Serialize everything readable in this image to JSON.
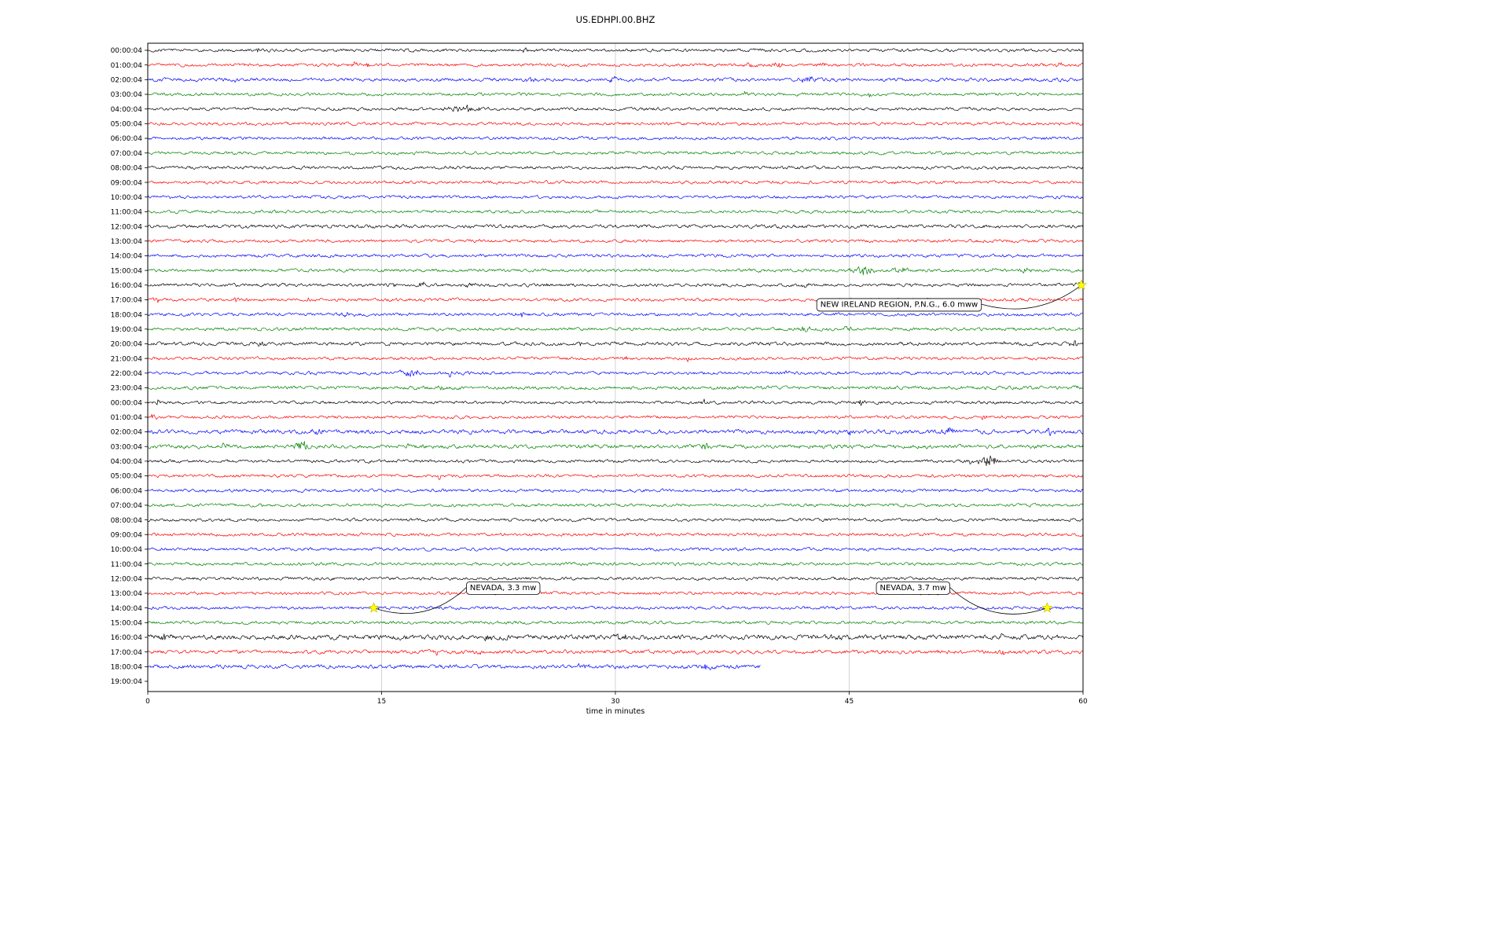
{
  "title": "US.EDHPI.00.BHZ",
  "chart_data": {
    "type": "line",
    "chart_kind": "seismic-helicorder-dayplot",
    "station_id": "US.EDHPI.00.BHZ",
    "xlabel": "time in minutes",
    "xlim": [
      0,
      60
    ],
    "xticks": [
      0,
      15,
      30,
      45,
      60
    ],
    "grid_x": [
      15,
      30,
      45
    ],
    "grid_on": true,
    "row_color_cycle": [
      "#000000",
      "#ff0000",
      "#0000ff",
      "#008000"
    ],
    "marker_color": "#ffff00",
    "rows": [
      {
        "label": "00:00:04",
        "color": "#000000",
        "bursts": [
          [
            7.1,
            4,
            0.08
          ],
          [
            24.2,
            3,
            0.1
          ]
        ]
      },
      {
        "label": "01:00:04",
        "color": "#ff0000",
        "bursts": [
          [
            13.2,
            3,
            0.15
          ],
          [
            14.1,
            2.5,
            0.1
          ],
          [
            38.8,
            4,
            0.25
          ],
          [
            40.4,
            3.5,
            0.3
          ],
          [
            43.2,
            3,
            0.2
          ],
          [
            58.5,
            3,
            0.15
          ]
        ]
      },
      {
        "label": "02:00:04",
        "color": "#0000ff",
        "noise": 1.1,
        "bursts": [
          [
            5.6,
            2,
            0.25
          ],
          [
            24.5,
            2,
            0.2
          ],
          [
            29.8,
            4,
            0.2
          ],
          [
            42.3,
            4,
            0.35
          ]
        ]
      },
      {
        "label": "03:00:04",
        "color": "#008000",
        "bursts": [
          [
            38.3,
            3,
            0.1
          ],
          [
            46.3,
            3,
            0.08
          ],
          [
            49.9,
            2.5,
            0.08
          ]
        ]
      },
      {
        "label": "04:00:04",
        "color": "#000000",
        "bursts": [
          [
            15.6,
            2.5,
            0.1
          ],
          [
            20.3,
            5,
            0.6
          ]
        ]
      },
      {
        "label": "05:00:04",
        "color": "#ff0000",
        "bursts": []
      },
      {
        "label": "06:00:04",
        "color": "#0000ff",
        "bursts": [
          [
            57.5,
            1.5,
            0.2
          ]
        ]
      },
      {
        "label": "07:00:04",
        "color": "#008000",
        "bursts": []
      },
      {
        "label": "08:00:04",
        "color": "#000000",
        "bursts": []
      },
      {
        "label": "09:00:04",
        "color": "#ff0000",
        "bursts": []
      },
      {
        "label": "10:00:04",
        "color": "#0000ff",
        "bursts": []
      },
      {
        "label": "11:00:04",
        "color": "#008000",
        "bursts": []
      },
      {
        "label": "12:00:04",
        "color": "#000000",
        "noise": 1.15,
        "bursts": []
      },
      {
        "label": "13:00:04",
        "color": "#ff0000",
        "bursts": []
      },
      {
        "label": "14:00:04",
        "color": "#0000ff",
        "bursts": []
      },
      {
        "label": "15:00:04",
        "color": "#008000",
        "bursts": [
          [
            45.8,
            5,
            0.5
          ],
          [
            48.3,
            4,
            0.4
          ],
          [
            54.1,
            3,
            0.25
          ],
          [
            56.2,
            3,
            0.25
          ]
        ]
      },
      {
        "label": "16:00:04",
        "color": "#000000",
        "bursts": [
          [
            15.6,
            3,
            0.2
          ],
          [
            17.6,
            3,
            0.2
          ],
          [
            20.6,
            3.5,
            0.3
          ],
          [
            25.6,
            2.5,
            0.15
          ],
          [
            42.1,
            2.5,
            0.2
          ],
          [
            59.8,
            4,
            0.2
          ]
        ]
      },
      {
        "label": "17:00:04",
        "color": "#ff0000",
        "bursts": [
          [
            0.6,
            2.5,
            0.15
          ],
          [
            5.6,
            3,
            0.1
          ],
          [
            10.4,
            3,
            0.15
          ]
        ]
      },
      {
        "label": "18:00:04",
        "color": "#0000ff",
        "bursts": [
          [
            12.8,
            3,
            0.25
          ],
          [
            23.9,
            3.5,
            0.25
          ]
        ]
      },
      {
        "label": "19:00:04",
        "color": "#008000",
        "bursts": [
          [
            42.2,
            3.5,
            0.3
          ],
          [
            44.9,
            5,
            0.15
          ]
        ]
      },
      {
        "label": "20:00:04",
        "color": "#000000",
        "noise": 1.15,
        "bursts": [
          [
            7.3,
            3,
            0.3
          ],
          [
            27.8,
            2.5,
            0.2
          ],
          [
            54.9,
            3,
            0.2
          ],
          [
            59.4,
            3.5,
            0.2
          ]
        ]
      },
      {
        "label": "21:00:04",
        "color": "#ff0000",
        "bursts": [
          [
            30.6,
            3.5,
            0.1
          ],
          [
            34.6,
            3,
            0.08
          ]
        ]
      },
      {
        "label": "22:00:04",
        "color": "#0000ff",
        "bursts": [
          [
            16.9,
            4,
            0.5
          ],
          [
            19.4,
            5,
            0.1
          ],
          [
            40.9,
            2.5,
            0.15
          ]
        ]
      },
      {
        "label": "23:00:04",
        "color": "#008000",
        "noise": 1.1,
        "bursts": [
          [
            18.8,
            3,
            0.2
          ],
          [
            59.6,
            3,
            0.1
          ]
        ]
      },
      {
        "label": "00:00:04",
        "color": "#000000",
        "bursts": [
          [
            0.7,
            3.5,
            0.15
          ],
          [
            35.7,
            4.5,
            0.1
          ],
          [
            45.7,
            3.5,
            0.2
          ],
          [
            51.2,
            3,
            0.1
          ]
        ]
      },
      {
        "label": "01:00:04",
        "color": "#ff0000",
        "bursts": [
          [
            0.4,
            4,
            0.15
          ],
          [
            26.4,
            2,
            0.15
          ],
          [
            53.6,
            2.5,
            0.15
          ]
        ]
      },
      {
        "label": "02:00:04",
        "color": "#0000ff",
        "noise": 1.35,
        "bursts": [
          [
            10.8,
            3.5,
            0.3
          ],
          [
            44.8,
            3,
            0.3
          ],
          [
            51.4,
            3.5,
            0.25
          ],
          [
            57.9,
            4,
            0.25
          ]
        ]
      },
      {
        "label": "03:00:04",
        "color": "#008000",
        "noise": 1.25,
        "bursts": [
          [
            4.9,
            3.5,
            0.15
          ],
          [
            9.8,
            7,
            0.3
          ],
          [
            16.6,
            4,
            0.15
          ],
          [
            35.8,
            4,
            0.2
          ]
        ]
      },
      {
        "label": "04:00:04",
        "color": "#000000",
        "bursts": [
          [
            52.7,
            3,
            0.15
          ],
          [
            53.9,
            6,
            0.45
          ]
        ]
      },
      {
        "label": "05:00:04",
        "color": "#ff0000",
        "bursts": [
          [
            18.7,
            3,
            0.1
          ]
        ]
      },
      {
        "label": "06:00:04",
        "color": "#0000ff",
        "bursts": []
      },
      {
        "label": "07:00:04",
        "color": "#008000",
        "bursts": []
      },
      {
        "label": "08:00:04",
        "color": "#000000",
        "bursts": []
      },
      {
        "label": "09:00:04",
        "color": "#ff0000",
        "bursts": []
      },
      {
        "label": "10:00:04",
        "color": "#0000ff",
        "bursts": []
      },
      {
        "label": "11:00:04",
        "color": "#008000",
        "bursts": []
      },
      {
        "label": "12:00:04",
        "color": "#000000",
        "bursts": []
      },
      {
        "label": "13:00:04",
        "color": "#ff0000",
        "bursts": []
      },
      {
        "label": "14:00:04",
        "color": "#0000ff",
        "bursts": [
          [
            14.6,
            2,
            0.15
          ],
          [
            57.8,
            2,
            0.15
          ]
        ]
      },
      {
        "label": "15:00:04",
        "color": "#008000",
        "bursts": []
      },
      {
        "label": "16:00:04",
        "color": "#000000",
        "noise": 1.6,
        "bursts": [
          [
            1.1,
            4,
            0.25
          ],
          [
            21.7,
            3.5,
            0.25
          ],
          [
            30.3,
            3,
            0.3
          ],
          [
            39.1,
            3,
            0.25
          ],
          [
            44.1,
            2.5,
            0.25
          ],
          [
            54.7,
            3.5,
            0.25
          ]
        ]
      },
      {
        "label": "17:00:04",
        "color": "#ff0000",
        "noise": 1.2,
        "bursts": [
          [
            18.6,
            4,
            0.15
          ],
          [
            21.1,
            3,
            0.15
          ],
          [
            54.9,
            3.5,
            0.15
          ]
        ]
      },
      {
        "label": "18:00:04",
        "color": "#0000ff",
        "noise": 1.25,
        "extent": 0.655,
        "bursts": [
          [
            27.9,
            3.5,
            0.3
          ],
          [
            35.9,
            3,
            0.25
          ]
        ]
      },
      {
        "label": "19:00:04",
        "color": "#008000",
        "extent": 0,
        "bursts": []
      }
    ],
    "events": [
      {
        "label": "NEW IRELAND REGION, P.N.G., 6.0 mww",
        "marker": "star",
        "marker_color": "#ffff00",
        "marker_minute": 59.9,
        "marker_row": 16,
        "box_minute": 48.2,
        "box_row": 17.3,
        "attach": "right",
        "rad": 0.25
      },
      {
        "label": "NEVADA, 3.3 mw",
        "marker": "star",
        "marker_color": "#ffff00",
        "marker_minute": 14.5,
        "marker_row": 38,
        "box_minute": 22.8,
        "box_row": 36.6,
        "attach": "left",
        "rad": -0.3
      },
      {
        "label": "NEVADA, 3.7 mw",
        "marker": "star",
        "marker_color": "#ffff00",
        "marker_minute": 57.7,
        "marker_row": 38,
        "box_minute": 49.1,
        "box_row": 36.6,
        "attach": "right",
        "rad": 0.3
      }
    ]
  }
}
